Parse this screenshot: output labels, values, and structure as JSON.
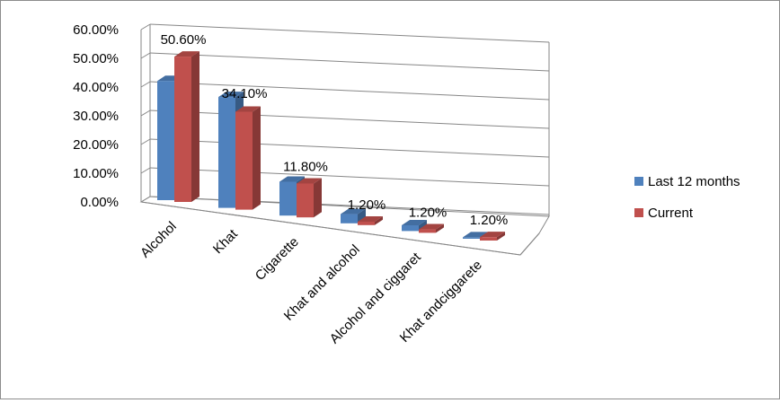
{
  "chart_data": {
    "type": "bar",
    "title": "",
    "xlabel": "",
    "ylabel": "",
    "ylim": [
      0,
      60
    ],
    "y_tick_labels": [
      "0.00%",
      "10.00%",
      "20.00%",
      "30.00%",
      "40.00%",
      "50.00%",
      "60.00%"
    ],
    "categories": [
      "Alcohol",
      "Khat",
      "Cigarette",
      "Khat and alcohol",
      "Alcohol and ciggaret",
      "Khat andciggarete"
    ],
    "series": [
      {
        "name": "Last 12 months",
        "values": [
          41.5,
          38.6,
          11.8,
          3.2,
          2.0,
          0.5
        ],
        "color": "#4f81bd"
      },
      {
        "name": "Current",
        "values": [
          50.6,
          34.1,
          11.8,
          1.2,
          1.2,
          1.2
        ],
        "color": "#c0504d"
      }
    ],
    "data_labels": [
      "50.60%",
      "34.10%",
      "11.80%",
      "1.20%",
      "1.20%",
      "1.20%"
    ],
    "grid": true,
    "legend_position": "right",
    "style": "3d-clustered-column"
  }
}
